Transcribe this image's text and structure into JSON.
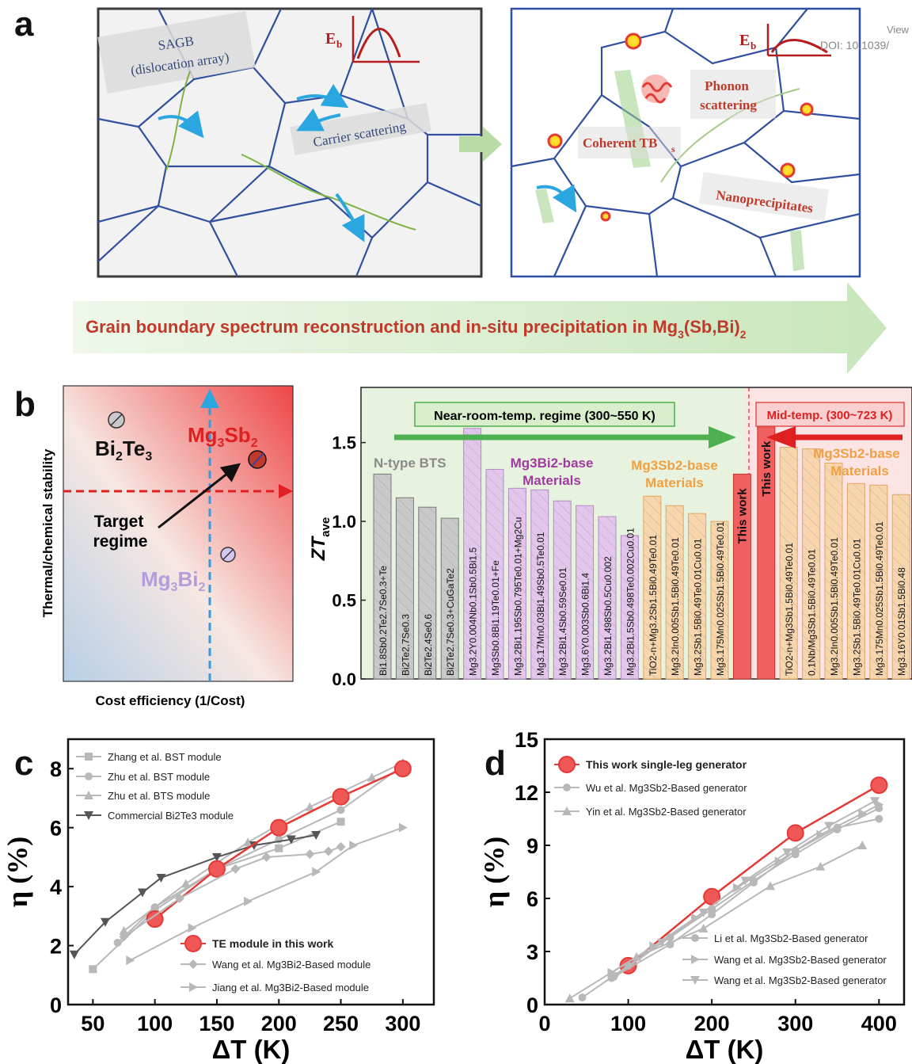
{
  "corner": {
    "line1": "View",
    "line2": "DOI: 10.1039/"
  },
  "panel_a": {
    "letter": "a",
    "left": {
      "sagb_line1": "SAGB",
      "sagb_line2": "(dislocation array)",
      "carrier": "Carrier scattering",
      "eb_label": "E",
      "eb_sub": "b"
    },
    "right": {
      "phonon_line1": "Phonon",
      "phonon_line2": "scattering",
      "tb_text": "Coherent TB",
      "tb_sub": "s",
      "nano": "Nanoprecipitates",
      "eb_label": "E",
      "eb_sub": "b"
    },
    "banner": {
      "text": "Grain boundary spectrum reconstruction and in-situ precipitation in Mg",
      "sub1": "3",
      "mid": "(Sb,Bi)",
      "sub2": "2"
    },
    "colors": {
      "grain_line": "#2f4f9f",
      "arrow": "#2aa6e0",
      "banner_text": "#c0392b",
      "dislocation": "#7cb342",
      "eb_curve": "#b71c1c"
    }
  },
  "panel_b_left": {
    "letter": "b",
    "ylabel": "Thermal/chemical stability",
    "xlabel": "Cost efficiency (1/Cost)",
    "bi2te3": {
      "a": "Bi",
      "s1": "2",
      "b": "Te",
      "s2": "3"
    },
    "mg3sb2": {
      "a": "Mg",
      "s1": "3",
      "b": "Sb",
      "s2": "2"
    },
    "mg3bi2": {
      "a": "Mg",
      "s1": "3",
      "b": "Bi",
      "s2": "2"
    },
    "target_line1": "Target",
    "target_line2": "regime"
  },
  "chart_data": [
    {
      "type": "bar",
      "panel": "b",
      "ylabel": "ZT",
      "ylabel_sub": "ave",
      "ylim": [
        0,
        1.85
      ],
      "yticks": [
        0.0,
        0.5,
        1.0,
        1.5
      ],
      "regime_room": "Near-room-temp. regime (300~550 K)",
      "regime_mid": "Mid-temp. (300~723 K)",
      "group_labels": [
        {
          "text": "N-type BTS"
        },
        {
          "line1": "Mg3Bi2-base",
          "line2": "Materials"
        },
        {
          "line1": "Mg3Sb2-base",
          "line2": "Materials"
        },
        {
          "line1": "Mg3Sb2-base",
          "line2": "Materials"
        }
      ],
      "categories": [
        "Bi1.8Sb0.2Te2.7Se0.3+Te",
        "Bi2Te2.7Se0.3",
        "Bi2Te2.4Se0.6",
        "Bi2Te2.7Se0.3+CuGaTe2",
        "Mg3.2Y0.004Nb0.1Sb0.5Bi1.5",
        "Mg3Sb0.8Bi1.19Te0.01+Fe",
        "Mg3.2Bi1.195Sb0.795Te0.01+Mg2Cu",
        "Mg3.17Mn0.03Bi1.49Sb0.5Te0.01",
        "Mg3.2Bi1.4Sb0.59Se0.01",
        "Mg3.6Y0.003Sb0.6Bi1.4",
        "Mg3.2Bi1.498Sb0.5Cu0.002",
        "Mg3.2Bi1.5Sb0.498Te0.002Cu0.01",
        "TiO2-n+Mg3.2Sb1.5Bi0.49Te0.01",
        "Mg3.2In0.005Sb1.5Bi0.49Te0.01",
        "Mg3.2Sb1.5Bi0.49Te0.01Cu0.01",
        "Mg3.175Mn0.025Sb1.5Bi0.49Te0.01",
        "This work",
        "This work",
        "TiO2-n+Mg3Sb1.5Bi0.49Te0.01",
        "0.1Nb/Mg3Sb1.5Bi0.49Te0.01",
        "Mg3.2In0.005Sb1.5Bi0.49Te0.01",
        "Mg3.2Sb1.5Bi0.49Te0.01Cu0.01",
        "Mg3.175Mn0.025Sb1.5Bi0.49Te0.01",
        "Mg3.16Y0.01Sb1.5Bi0.48"
      ],
      "values": [
        1.3,
        1.15,
        1.09,
        1.02,
        1.59,
        1.33,
        1.21,
        1.2,
        1.13,
        1.1,
        1.03,
        0.91,
        1.16,
        1.1,
        1.05,
        1.0,
        1.3,
        1.6,
        1.47,
        1.46,
        1.37,
        1.24,
        1.23,
        1.17
      ],
      "groups": [
        "bts",
        "bts",
        "bts",
        "bts",
        "bi",
        "bi",
        "bi",
        "bi",
        "bi",
        "bi",
        "bi",
        "bi",
        "sb",
        "sb",
        "sb",
        "sb",
        "tw",
        "tw",
        "sb",
        "sb",
        "sb",
        "sb",
        "sb",
        "sb"
      ]
    },
    {
      "type": "line",
      "panel": "c",
      "xlabel": "ΔT (K)",
      "ylabel": "η (%)",
      "xlim": [
        30,
        325
      ],
      "ylim": [
        0,
        9
      ],
      "xticks": [
        50,
        100,
        150,
        200,
        250,
        300
      ],
      "yticks": [
        0,
        2,
        4,
        6,
        8
      ],
      "series": [
        {
          "name": "Zhang et al. BST module",
          "marker": "square",
          "color": "#b8b8b8",
          "x": [
            50,
            100,
            150,
            200,
            250
          ],
          "y": [
            1.2,
            3.2,
            4.6,
            5.3,
            6.2
          ]
        },
        {
          "name": "Zhu et al. BST module",
          "marker": "circle",
          "color": "#b8b8b8",
          "x": [
            70,
            100,
            150,
            200,
            250,
            300
          ],
          "y": [
            2.1,
            3.3,
            4.6,
            5.6,
            6.6,
            8.1
          ]
        },
        {
          "name": "Zhu et al. BTS module",
          "marker": "triangle",
          "color": "#b8b8b8",
          "x": [
            75,
            125,
            175,
            225,
            275,
            300
          ],
          "y": [
            2.5,
            4.1,
            5.5,
            6.7,
            7.7,
            8.2
          ]
        },
        {
          "name": "Commercial Bi2Te3 module",
          "marker": "tridown",
          "color": "#555555",
          "x": [
            35,
            60,
            90,
            105,
            150,
            180,
            210,
            230
          ],
          "y": [
            1.7,
            2.8,
            3.8,
            4.3,
            5.0,
            5.4,
            5.6,
            5.75
          ]
        },
        {
          "name": "TE module in this work",
          "marker": "bigcircle",
          "color": "#e53935",
          "x": [
            100,
            150,
            200,
            250,
            300
          ],
          "y": [
            2.9,
            4.6,
            6.0,
            7.05,
            8.0
          ]
        },
        {
          "name": "Wang et al. Mg3Bi2-Based module",
          "marker": "diamond",
          "color": "#b8b8b8",
          "x": [
            75,
            120,
            165,
            190,
            225,
            240,
            250
          ],
          "y": [
            2.3,
            3.6,
            4.6,
            5.0,
            5.1,
            5.2,
            5.35
          ]
        },
        {
          "name": "Jiang et al. Mg3Bi2-Based module",
          "marker": "triright",
          "color": "#b8b8b8",
          "x": [
            80,
            130,
            175,
            230,
            260,
            300
          ],
          "y": [
            1.5,
            2.6,
            3.5,
            4.5,
            5.4,
            6.0
          ]
        }
      ]
    },
    {
      "type": "line",
      "panel": "d",
      "xlabel": "ΔT (K)",
      "ylabel": "η (%)",
      "xlim": [
        0,
        430
      ],
      "ylim": [
        0,
        15
      ],
      "xticks": [
        0,
        100,
        200,
        300,
        400
      ],
      "yticks": [
        0,
        3,
        6,
        9,
        12,
        15
      ],
      "series": [
        {
          "name": "This work single-leg generator",
          "marker": "bigcircle",
          "color": "#e53935",
          "x": [
            100,
            200,
            300,
            400
          ],
          "y": [
            2.2,
            6.1,
            9.7,
            12.4
          ]
        },
        {
          "name": "Wu et al. Mg3Sb2-Based generator",
          "marker": "circle",
          "color": "#b8b8b8",
          "x": [
            45,
            100,
            150,
            200,
            250,
            300,
            350,
            400
          ],
          "y": [
            0.4,
            2.2,
            3.8,
            5.4,
            7.0,
            8.5,
            9.9,
            11.1
          ]
        },
        {
          "name": "Yin et al. Mg3Sb2-Based generator",
          "marker": "triangle",
          "color": "#b8b8b8",
          "x": [
            30,
            110,
            190,
            270,
            330,
            380
          ],
          "y": [
            0.35,
            2.7,
            4.3,
            6.7,
            7.8,
            9.0
          ]
        },
        {
          "name": "Li et al. Mg3Sb2-Based generator",
          "marker": "circle",
          "color": "#b8b8b8",
          "x": [
            80,
            150,
            200,
            250,
            300,
            350,
            400
          ],
          "y": [
            1.5,
            3.4,
            5.1,
            6.9,
            8.7,
            10.0,
            10.5
          ]
        },
        {
          "name": "Wang et al. Mg3Sb2-Based generator",
          "marker": "triright",
          "color": "#b8b8b8",
          "x": [
            80,
            130,
            180,
            230,
            280,
            330,
            380,
            400
          ],
          "y": [
            1.8,
            3.3,
            4.9,
            6.6,
            8.1,
            9.6,
            10.8,
            11.3
          ]
        },
        {
          "name": "Wang et al. Mg3Sb2-Based generator",
          "marker": "tridown",
          "color": "#b8b8b8",
          "x": [
            85,
            140,
            190,
            240,
            290,
            340,
            395
          ],
          "y": [
            1.6,
            3.5,
            5.2,
            7.0,
            8.6,
            10.1,
            11.5
          ]
        }
      ]
    }
  ]
}
